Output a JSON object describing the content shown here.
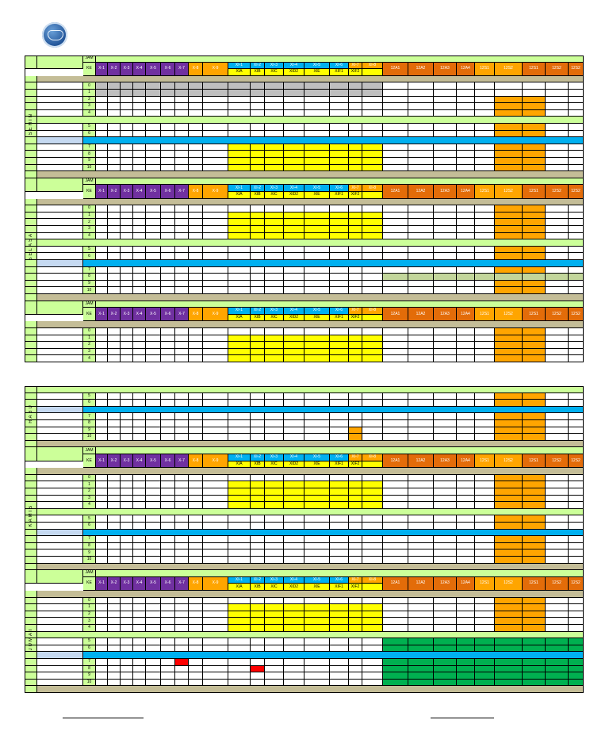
{
  "header": {
    "jam": "JAM",
    "ke": "KE"
  },
  "classes_top": [
    "X-1",
    "X-2",
    "X-3",
    "X-4",
    "X-5",
    "X-6",
    "X-7",
    "X-8",
    "X-9",
    "XI-1",
    "XI-2",
    "XI-3",
    "XI-4",
    "XI-5",
    "XI-6",
    "XI-7",
    "XI-8",
    "12A1",
    "12A2",
    "12A3",
    "12A4",
    "12S1",
    "12S2",
    "12S1",
    "12S2"
  ],
  "classes_xi_sub": [
    "XIA",
    "XIB",
    "XIC",
    "XID2",
    "XIE",
    "XIF1",
    "XIF2"
  ],
  "periods": [
    "0",
    "1",
    "2",
    "3",
    "4",
    "5",
    "6",
    "7",
    "8",
    "9",
    "10"
  ],
  "days": [
    "SENIN",
    "SELASA",
    "RABU",
    "KAMIS",
    "JUMAT"
  ],
  "colors": {
    "grade_x": "#7030a0",
    "grade_x_orange": "#ffa500",
    "grade_xi": "#00b0f0",
    "grade_xi_yellow": "#ffff00",
    "grade_12": "#e36c09",
    "break_blue": "#00b0f0",
    "light_green": "#ccff99",
    "tan": "#c4bd97",
    "gray": "#bfbfbf",
    "dark_green": "#00b050",
    "red": "#ff0000",
    "olive": "#c3d69b"
  }
}
